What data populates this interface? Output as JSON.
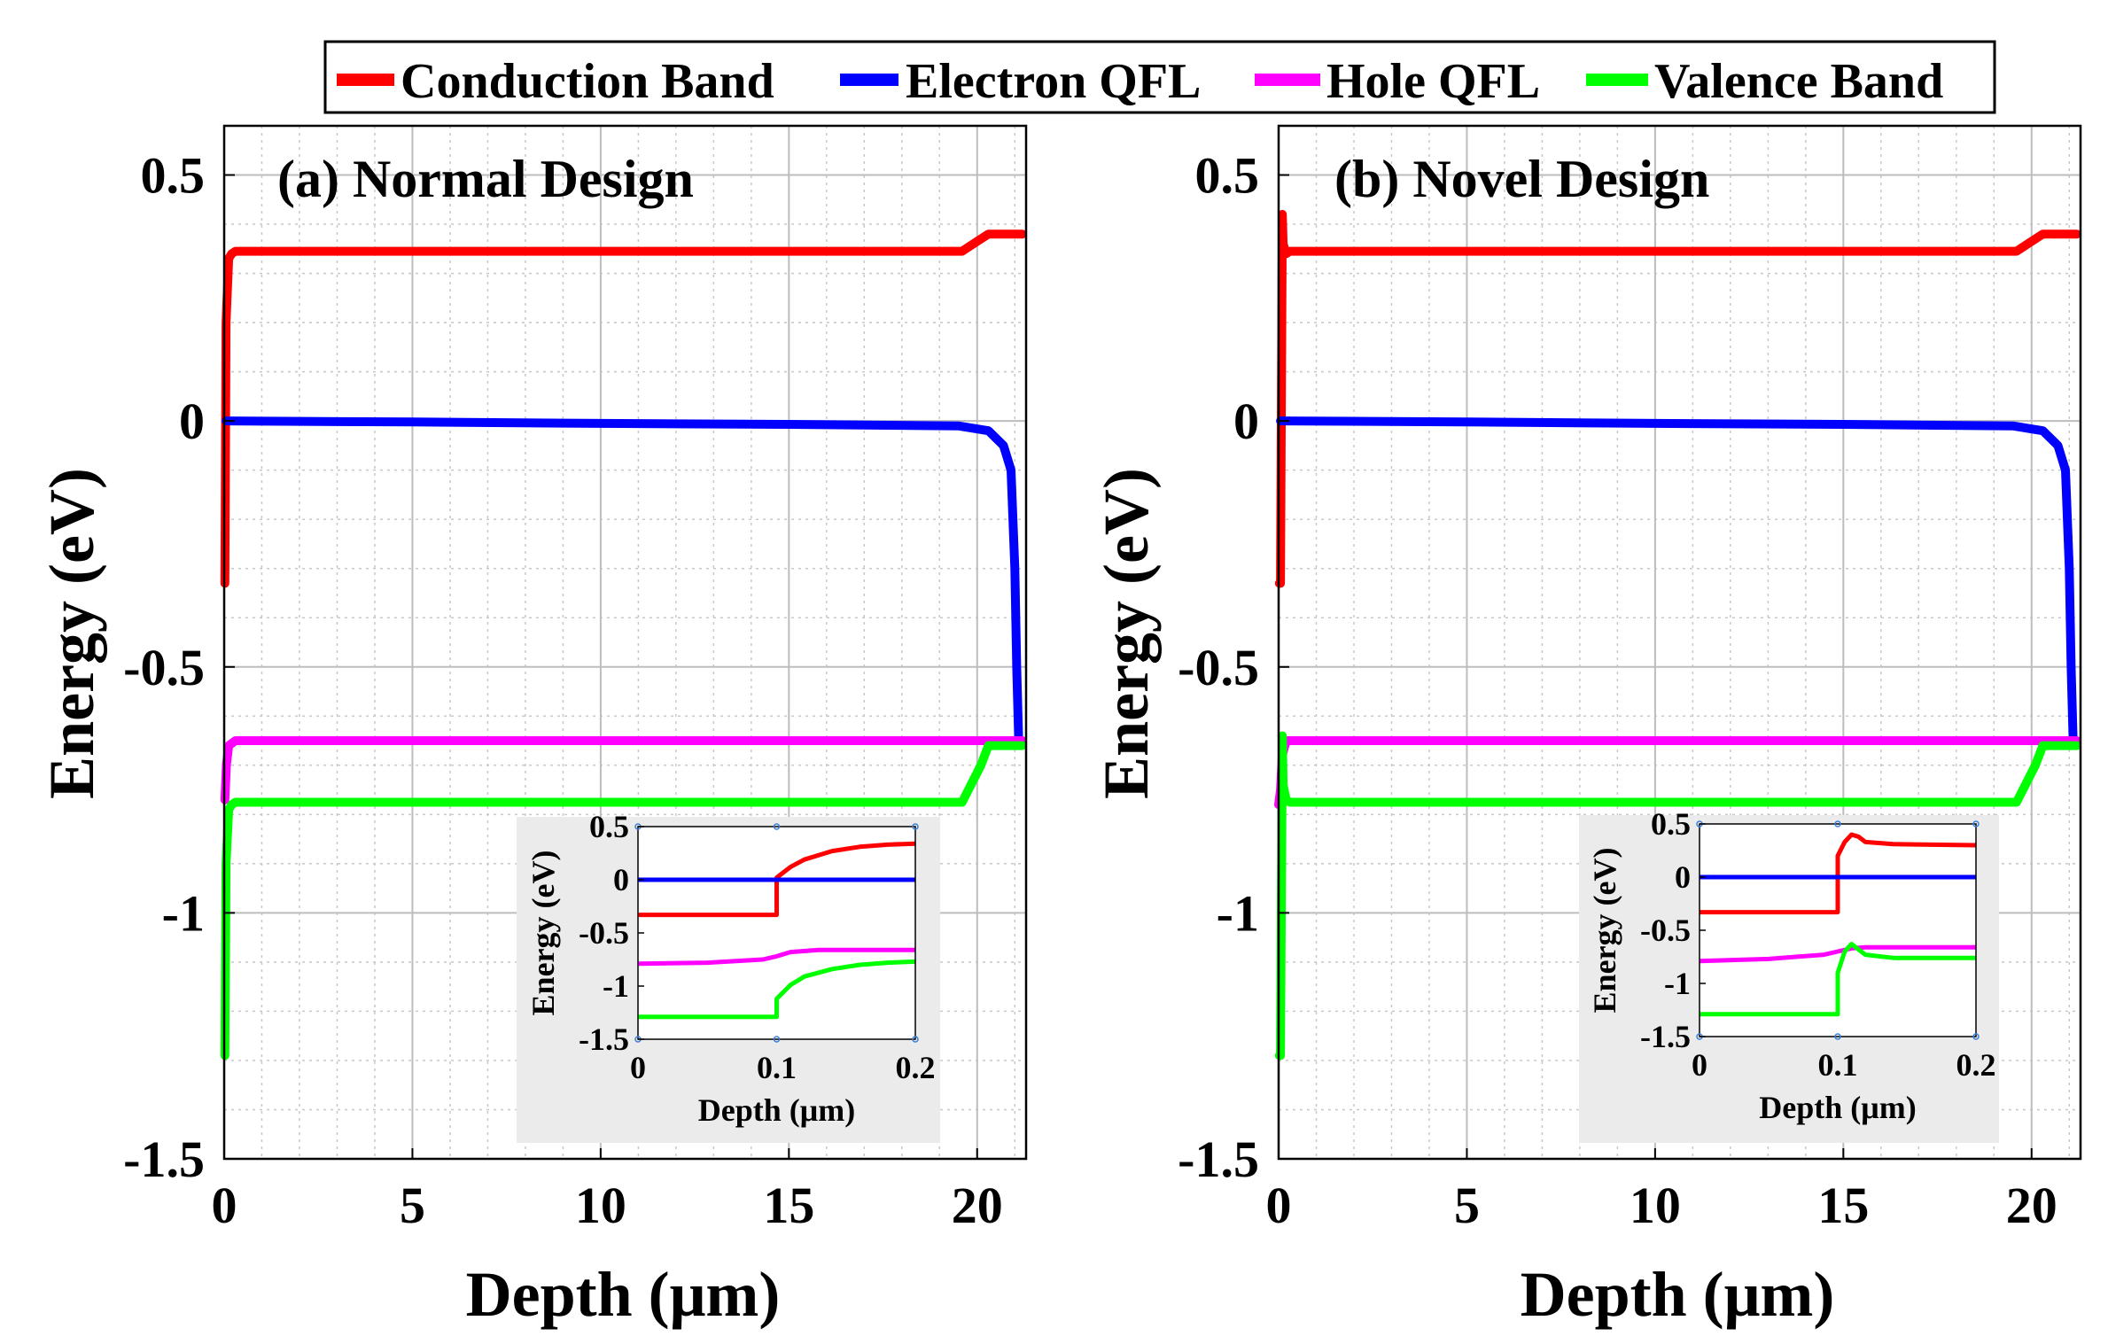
{
  "legend": {
    "items": [
      {
        "label": "Conduction Band",
        "color": "#ff0000"
      },
      {
        "label": "Electron QFL",
        "color": "#0000ff"
      },
      {
        "label": "Hole QFL",
        "color": "#ff00ff"
      },
      {
        "label": "Valence Band",
        "color": "#00ff00"
      }
    ]
  },
  "chart_data": [
    {
      "type": "line",
      "title": "(a) Normal Design",
      "xlabel": "Depth (μm)",
      "ylabel": "Energy (eV)",
      "xlim": [
        0,
        21.3
      ],
      "ylim": [
        -1.5,
        0.6
      ],
      "xticks": [
        0,
        5,
        10,
        15,
        20
      ],
      "yticks": [
        0.5,
        0,
        -0.5,
        -1,
        -1.5
      ],
      "xtick_labels": [
        "0",
        "5",
        "10",
        "15",
        "20"
      ],
      "ytick_labels": [
        "0.5",
        "0",
        "-0.5",
        "-1",
        "-1.5"
      ],
      "grid": true,
      "series": [
        {
          "name": "Conduction Band",
          "color": "#ff0000",
          "x": [
            0.02,
            0.05,
            0.12,
            0.2,
            0.3,
            19.6,
            20.1,
            20.3,
            21.2
          ],
          "y": [
            -0.33,
            0.2,
            0.33,
            0.34,
            0.345,
            0.345,
            0.37,
            0.38,
            0.38
          ]
        },
        {
          "name": "Electron QFL",
          "color": "#0000ff",
          "x": [
            0.05,
            5,
            10,
            15,
            19.5,
            20.3,
            20.7,
            20.9,
            21.0,
            21.05,
            21.1
          ],
          "y": [
            0.0,
            -0.002,
            -0.005,
            -0.007,
            -0.01,
            -0.02,
            -0.05,
            -0.1,
            -0.3,
            -0.5,
            -0.64
          ]
        },
        {
          "name": "Hole QFL",
          "color": "#ff00ff",
          "x": [
            0.02,
            0.06,
            0.12,
            0.3,
            21.2
          ],
          "y": [
            -0.77,
            -0.7,
            -0.66,
            -0.65,
            -0.65
          ]
        },
        {
          "name": "Valence Band",
          "color": "#00ff00",
          "x": [
            0.02,
            0.05,
            0.12,
            0.2,
            0.3,
            19.6,
            20.1,
            20.3,
            21.2
          ],
          "y": [
            -1.29,
            -0.9,
            -0.79,
            -0.78,
            -0.775,
            -0.775,
            -0.7,
            -0.66,
            -0.66
          ]
        }
      ],
      "inset": {
        "xlabel": "Depth (μm)",
        "ylabel": "Energy (eV)",
        "xlim": [
          0,
          0.2
        ],
        "ylim": [
          -1.5,
          0.5
        ],
        "xticks": [
          0,
          0.1,
          0.2
        ],
        "yticks": [
          0.5,
          0,
          -0.5,
          -1,
          -1.5
        ],
        "xtick_labels": [
          "0",
          "0.1",
          "0.2"
        ],
        "ytick_labels": [
          "0.5",
          "0",
          "-0.5",
          "-1",
          "-1.5"
        ],
        "series": [
          {
            "name": "Conduction Band",
            "color": "#ff0000",
            "x": [
              0,
              0.1,
              0.1,
              0.11,
              0.12,
              0.14,
              0.16,
              0.18,
              0.2
            ],
            "y": [
              -0.33,
              -0.33,
              0.02,
              0.12,
              0.19,
              0.27,
              0.31,
              0.33,
              0.34
            ]
          },
          {
            "name": "Electron QFL",
            "color": "#0000ff",
            "x": [
              0,
              0.2
            ],
            "y": [
              0,
              0
            ]
          },
          {
            "name": "Hole QFL",
            "color": "#ff00ff",
            "x": [
              0,
              0.05,
              0.09,
              0.1,
              0.11,
              0.13,
              0.2
            ],
            "y": [
              -0.79,
              -0.78,
              -0.75,
              -0.72,
              -0.68,
              -0.66,
              -0.66
            ]
          },
          {
            "name": "Valence Band",
            "color": "#00ff00",
            "x": [
              0,
              0.1,
              0.1,
              0.11,
              0.12,
              0.14,
              0.16,
              0.18,
              0.2
            ],
            "y": [
              -1.29,
              -1.29,
              -1.12,
              -0.99,
              -0.91,
              -0.84,
              -0.8,
              -0.78,
              -0.77
            ]
          }
        ]
      }
    },
    {
      "type": "line",
      "title": "(b) Novel Design",
      "xlabel": "Depth (μm)",
      "ylabel": "Energy (eV)",
      "xlim": [
        0,
        21.3
      ],
      "ylim": [
        -1.5,
        0.6
      ],
      "xticks": [
        0,
        5,
        10,
        15,
        20
      ],
      "yticks": [
        0.5,
        0,
        -0.5,
        -1,
        -1.5
      ],
      "xtick_labels": [
        "0",
        "5",
        "10",
        "15",
        "20"
      ],
      "ytick_labels": [
        "0.5",
        "0",
        "-0.5",
        "-1",
        "-1.5"
      ],
      "grid": true,
      "series": [
        {
          "name": "Conduction Band",
          "color": "#ff0000",
          "x": [
            0.02,
            0.05,
            0.1,
            0.12,
            0.2,
            0.3,
            19.6,
            20.1,
            20.3,
            21.2
          ],
          "y": [
            -0.33,
            -0.33,
            0.42,
            0.36,
            0.34,
            0.345,
            0.345,
            0.37,
            0.38,
            0.38
          ]
        },
        {
          "name": "Electron QFL",
          "color": "#0000ff",
          "x": [
            0.05,
            5,
            10,
            15,
            19.5,
            20.3,
            20.7,
            20.9,
            21.0,
            21.05,
            21.1
          ],
          "y": [
            0.0,
            -0.002,
            -0.005,
            -0.007,
            -0.01,
            -0.02,
            -0.05,
            -0.1,
            -0.3,
            -0.5,
            -0.64
          ]
        },
        {
          "name": "Hole QFL",
          "color": "#ff00ff",
          "x": [
            0.0,
            0.05,
            0.1,
            0.2,
            21.2
          ],
          "y": [
            -0.78,
            -0.75,
            -0.68,
            -0.65,
            -0.65
          ]
        },
        {
          "name": "Valence Band",
          "color": "#00ff00",
          "x": [
            0.02,
            0.05,
            0.1,
            0.12,
            0.2,
            0.3,
            19.6,
            20.1,
            20.3,
            21.2
          ],
          "y": [
            -1.29,
            -1.29,
            -0.64,
            -0.74,
            -0.77,
            -0.775,
            -0.775,
            -0.7,
            -0.66,
            -0.66
          ]
        }
      ],
      "inset": {
        "xlabel": "Depth (μm)",
        "ylabel": "Energy (eV)",
        "xlim": [
          0,
          0.2
        ],
        "ylim": [
          -1.5,
          0.5
        ],
        "xticks": [
          0,
          0.1,
          0.2
        ],
        "yticks": [
          0.5,
          0,
          -0.5,
          -1,
          -1.5
        ],
        "xtick_labels": [
          "0",
          "0.1",
          "0.2"
        ],
        "ytick_labels": [
          "0.5",
          "0",
          "-0.5",
          "-1",
          "-1.5"
        ],
        "series": [
          {
            "name": "Conduction Band",
            "color": "#ff0000",
            "x": [
              0,
              0.1,
              0.1,
              0.105,
              0.11,
              0.115,
              0.12,
              0.14,
              0.2
            ],
            "y": [
              -0.33,
              -0.33,
              0.2,
              0.33,
              0.4,
              0.38,
              0.33,
              0.31,
              0.3
            ]
          },
          {
            "name": "Electron QFL",
            "color": "#0000ff",
            "x": [
              0,
              0.2
            ],
            "y": [
              0,
              0
            ]
          },
          {
            "name": "Hole QFL",
            "color": "#ff00ff",
            "x": [
              0,
              0.05,
              0.09,
              0.1,
              0.11,
              0.12,
              0.2
            ],
            "y": [
              -0.79,
              -0.77,
              -0.73,
              -0.7,
              -0.67,
              -0.66,
              -0.66
            ]
          },
          {
            "name": "Valence Band",
            "color": "#00ff00",
            "x": [
              0,
              0.1,
              0.1,
              0.105,
              0.11,
              0.115,
              0.12,
              0.14,
              0.2
            ],
            "y": [
              -1.29,
              -1.29,
              -0.9,
              -0.7,
              -0.63,
              -0.68,
              -0.73,
              -0.76,
              -0.76
            ]
          }
        ]
      }
    }
  ]
}
